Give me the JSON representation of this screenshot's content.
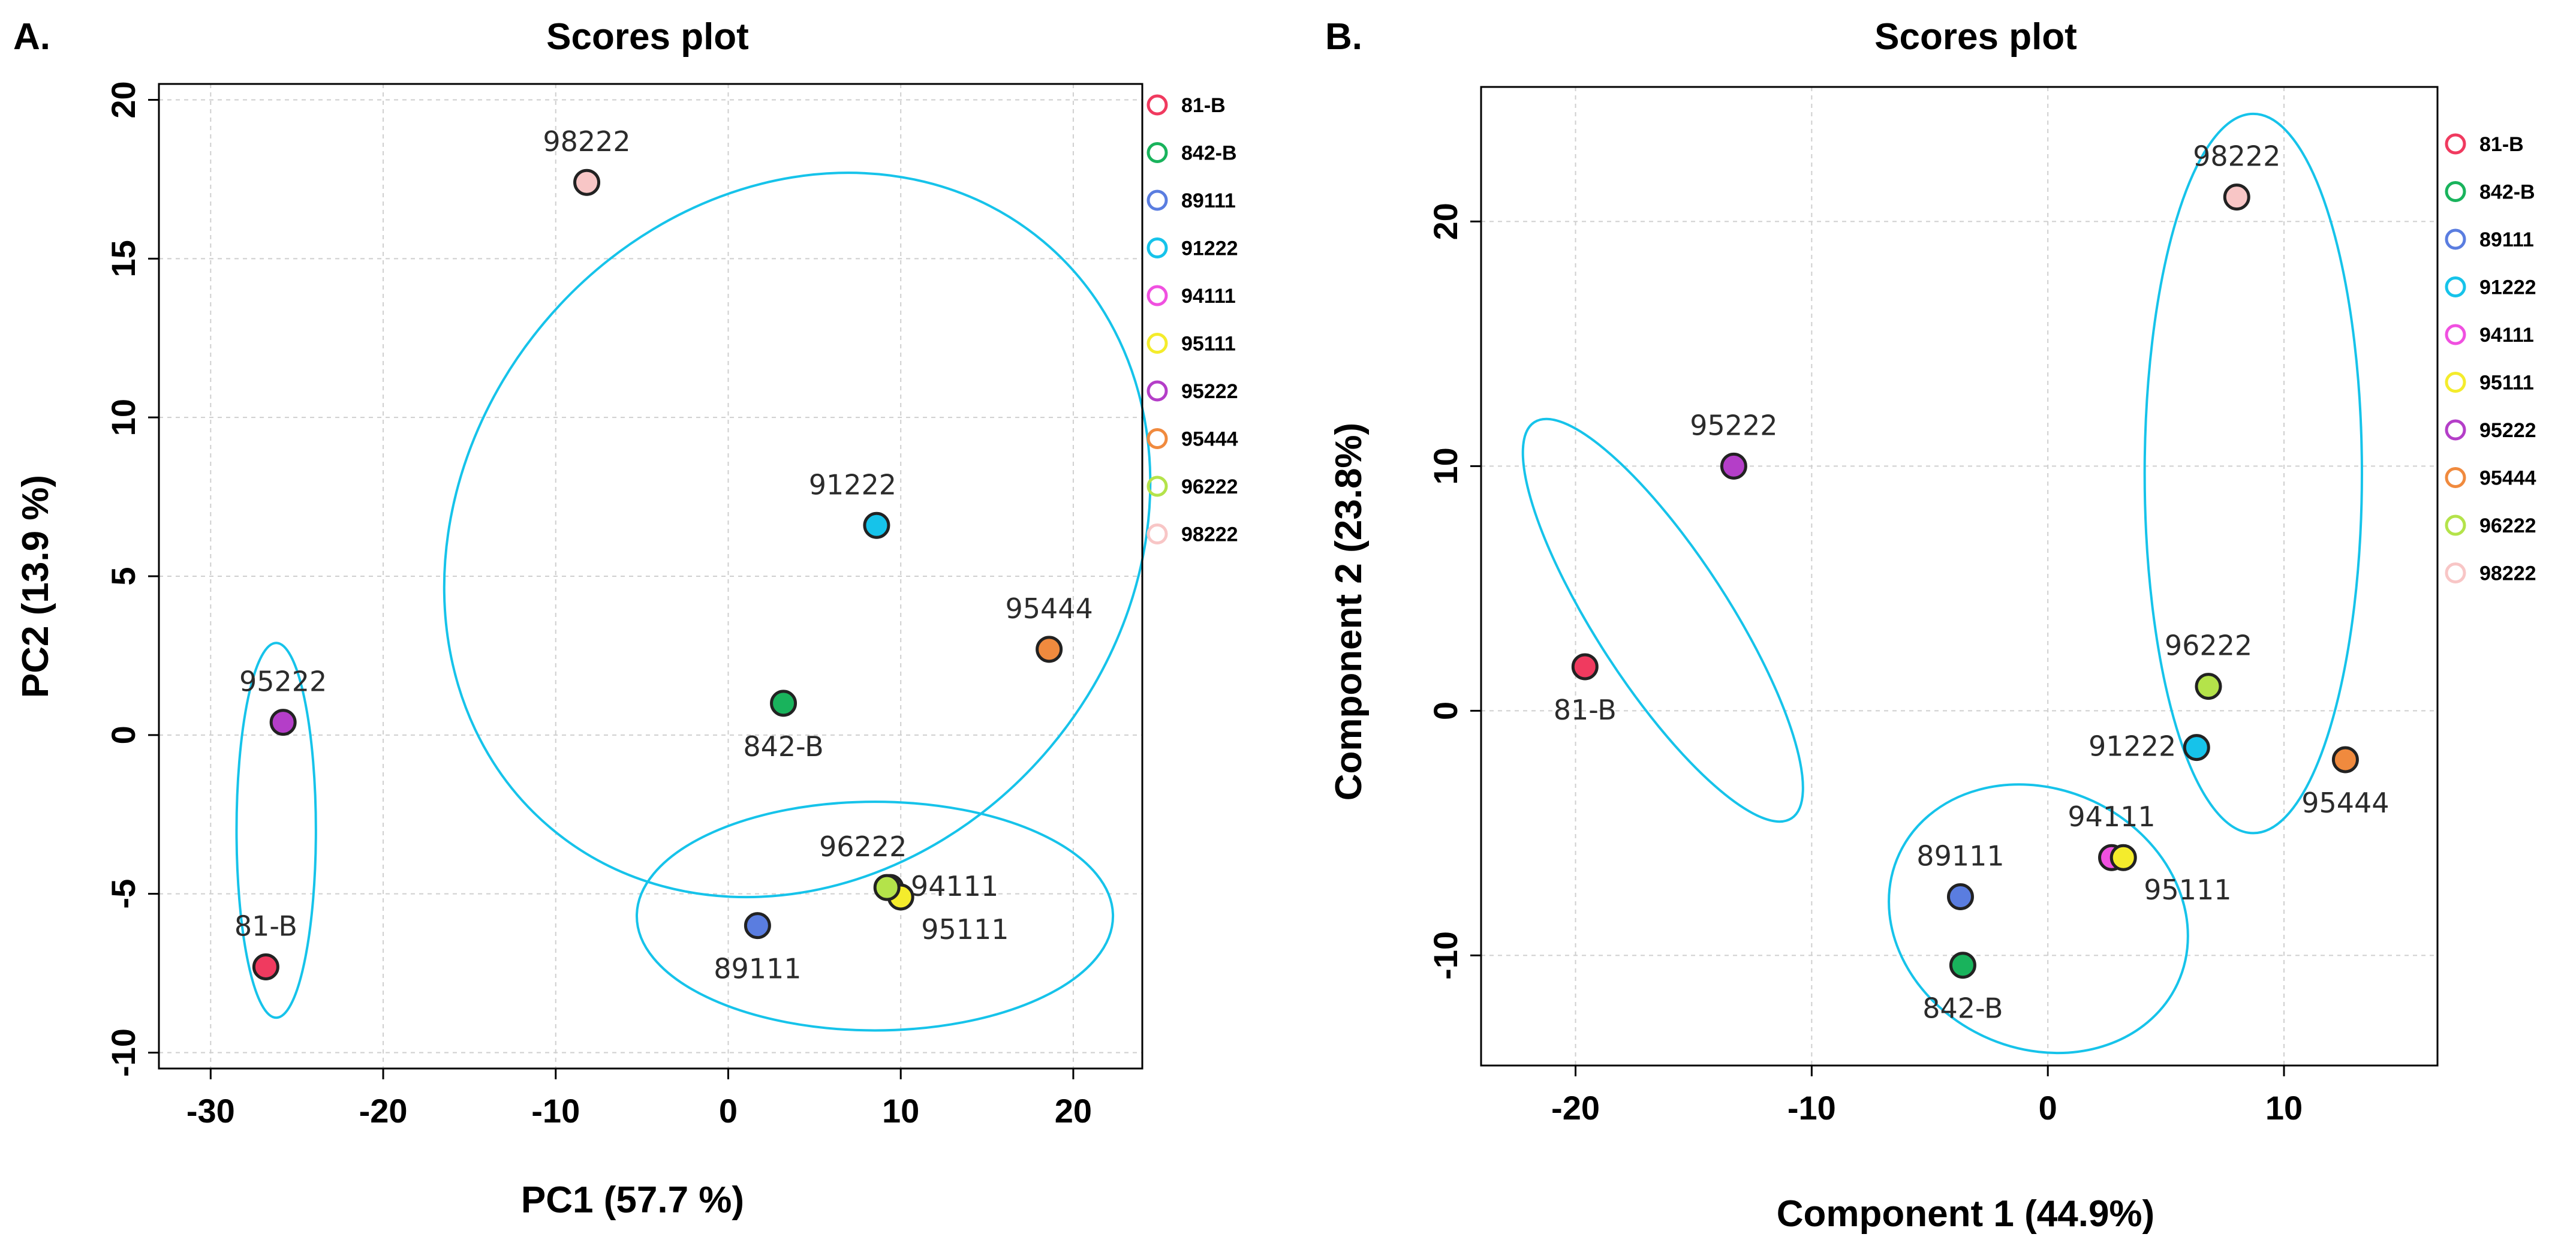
{
  "chart_data": [
    {
      "panel": "A.",
      "type": "scatter",
      "title": "Scores plot",
      "xlabel": "PC1 (57.7 %)",
      "ylabel": "PC2 (13.9 %)",
      "xlim": [
        -33,
        24
      ],
      "ylim": [
        -10.5,
        20.5
      ],
      "xticks": [
        -30,
        -20,
        -10,
        0,
        10,
        20
      ],
      "yticks": [
        -10,
        -5,
        0,
        5,
        10,
        15,
        20
      ],
      "xtick_labels": [
        "-30",
        "-20",
        "-10",
        "0",
        "10",
        "20"
      ],
      "ytick_labels": [
        "-10",
        "-5",
        "0",
        "5",
        "10",
        "15",
        "20"
      ],
      "grid": true,
      "legend_position": "outside-right",
      "points": [
        {
          "name": "81-B",
          "x": -26.8,
          "y": -7.3,
          "color": "#f03a5f",
          "label": "81-B",
          "label_pos": "above"
        },
        {
          "name": "842-B",
          "x": 3.2,
          "y": 1.0,
          "color": "#19b35c",
          "label": "842-B",
          "label_pos": "below"
        },
        {
          "name": "89111",
          "x": 1.7,
          "y": -6.0,
          "color": "#5a7de0",
          "label": "89111",
          "label_pos": "below"
        },
        {
          "name": "91222",
          "x": 8.6,
          "y": 6.6,
          "color": "#16c3ea",
          "label": "91222",
          "label_pos": "above-left"
        },
        {
          "name": "94111",
          "x": 9.4,
          "y": -4.8,
          "color": "#f050e0",
          "label": "94111",
          "label_pos": "right"
        },
        {
          "name": "95111",
          "x": 10.0,
          "y": -5.1,
          "color": "#f4ec2c",
          "label": "95111",
          "label_pos": "below-right"
        },
        {
          "name": "95222",
          "x": -25.8,
          "y": 0.4,
          "color": "#b43ec8",
          "label": "95222",
          "label_pos": "above"
        },
        {
          "name": "95444",
          "x": 18.6,
          "y": 2.7,
          "color": "#f08a3e",
          "label": "95444",
          "label_pos": "above"
        },
        {
          "name": "96222",
          "x": 9.2,
          "y": -4.8,
          "color": "#b4e34a",
          "label": "96222",
          "label_pos": "above-left"
        },
        {
          "name": "98222",
          "x": -8.2,
          "y": 17.4,
          "color": "#f8c6c6",
          "label": "98222",
          "label_pos": "above"
        }
      ],
      "ellipses": [
        {
          "cx": -26.2,
          "cy": -3.0,
          "rx": 2.3,
          "ry": 5.9,
          "angle": 0
        },
        {
          "cx": 4.0,
          "cy": 6.3,
          "rx": 22.2,
          "ry": 10.4,
          "angle": -50
        },
        {
          "cx": 8.5,
          "cy": -5.7,
          "rx": 13.8,
          "ry": 3.6,
          "angle": 0
        }
      ],
      "legend": [
        {
          "label": "81-B",
          "color": "#f03a5f"
        },
        {
          "label": "842-B",
          "color": "#19b35c"
        },
        {
          "label": "89111",
          "color": "#5a7de0"
        },
        {
          "label": "91222",
          "color": "#16c3ea"
        },
        {
          "label": "94111",
          "color": "#f050e0"
        },
        {
          "label": "95111",
          "color": "#f4ec2c"
        },
        {
          "label": "95222",
          "color": "#b43ec8"
        },
        {
          "label": "95444",
          "color": "#f08a3e"
        },
        {
          "label": "96222",
          "color": "#b4e34a"
        },
        {
          "label": "98222",
          "color": "#f8c6c6"
        }
      ]
    },
    {
      "panel": "B.",
      "type": "scatter",
      "title": "Scores plot",
      "xlabel": "Component 1 (44.9%)",
      "ylabel": "Component 2 (23.8%)",
      "xlim": [
        -24,
        16.5
      ],
      "ylim": [
        -14.5,
        25.5
      ],
      "xticks": [
        -20,
        -10,
        0,
        10
      ],
      "yticks": [
        -10,
        0,
        10,
        20
      ],
      "xtick_labels": [
        "-20",
        "-10",
        "0",
        "10"
      ],
      "ytick_labels": [
        "-10",
        "0",
        "10",
        "20"
      ],
      "grid": true,
      "legend_position": "outside-right",
      "points": [
        {
          "name": "81-B",
          "x": -19.6,
          "y": 1.8,
          "color": "#f03a5f",
          "label": "81-B",
          "label_pos": "below"
        },
        {
          "name": "842-B",
          "x": -3.6,
          "y": -10.4,
          "color": "#19b35c",
          "label": "842-B",
          "label_pos": "below"
        },
        {
          "name": "89111",
          "x": -3.7,
          "y": -7.6,
          "color": "#5a7de0",
          "label": "89111",
          "label_pos": "above"
        },
        {
          "name": "91222",
          "x": 6.3,
          "y": -1.5,
          "color": "#16c3ea",
          "label": "91222",
          "label_pos": "left"
        },
        {
          "name": "94111",
          "x": 2.7,
          "y": -6.0,
          "color": "#f050e0",
          "label": "94111",
          "label_pos": "above"
        },
        {
          "name": "95111",
          "x": 3.2,
          "y": -6.0,
          "color": "#f4ec2c",
          "label": "95111",
          "label_pos": "below-right"
        },
        {
          "name": "95222",
          "x": -13.3,
          "y": 10.0,
          "color": "#b43ec8",
          "label": "95222",
          "label_pos": "above"
        },
        {
          "name": "95444",
          "x": 12.6,
          "y": -2.0,
          "color": "#f08a3e",
          "label": "95444",
          "label_pos": "below"
        },
        {
          "name": "96222",
          "x": 6.8,
          "y": 1.0,
          "color": "#b4e34a",
          "label": "96222",
          "label_pos": "above"
        },
        {
          "name": "98222",
          "x": 8.0,
          "y": 21.0,
          "color": "#f8c6c6",
          "label": "98222",
          "label_pos": "above"
        }
      ],
      "ellipses": [
        {
          "cx": -16.3,
          "cy": 3.7,
          "rx": 10.0,
          "ry": 2.7,
          "angle": 57
        },
        {
          "cx": 8.7,
          "cy": 9.7,
          "rx": 4.6,
          "ry": 14.7,
          "angle": 0
        },
        {
          "cx": -0.4,
          "cy": -8.5,
          "rx": 6.5,
          "ry": 5.3,
          "angle": 25
        }
      ],
      "legend": [
        {
          "label": "81-B",
          "color": "#f03a5f"
        },
        {
          "label": "842-B",
          "color": "#19b35c"
        },
        {
          "label": "89111",
          "color": "#5a7de0"
        },
        {
          "label": "91222",
          "color": "#16c3ea"
        },
        {
          "label": "94111",
          "color": "#f050e0"
        },
        {
          "label": "95111",
          "color": "#f4ec2c"
        },
        {
          "label": "95222",
          "color": "#b43ec8"
        },
        {
          "label": "95444",
          "color": "#f08a3e"
        },
        {
          "label": "96222",
          "color": "#b4e34a"
        },
        {
          "label": "98222",
          "color": "#f8c6c6"
        }
      ]
    }
  ]
}
